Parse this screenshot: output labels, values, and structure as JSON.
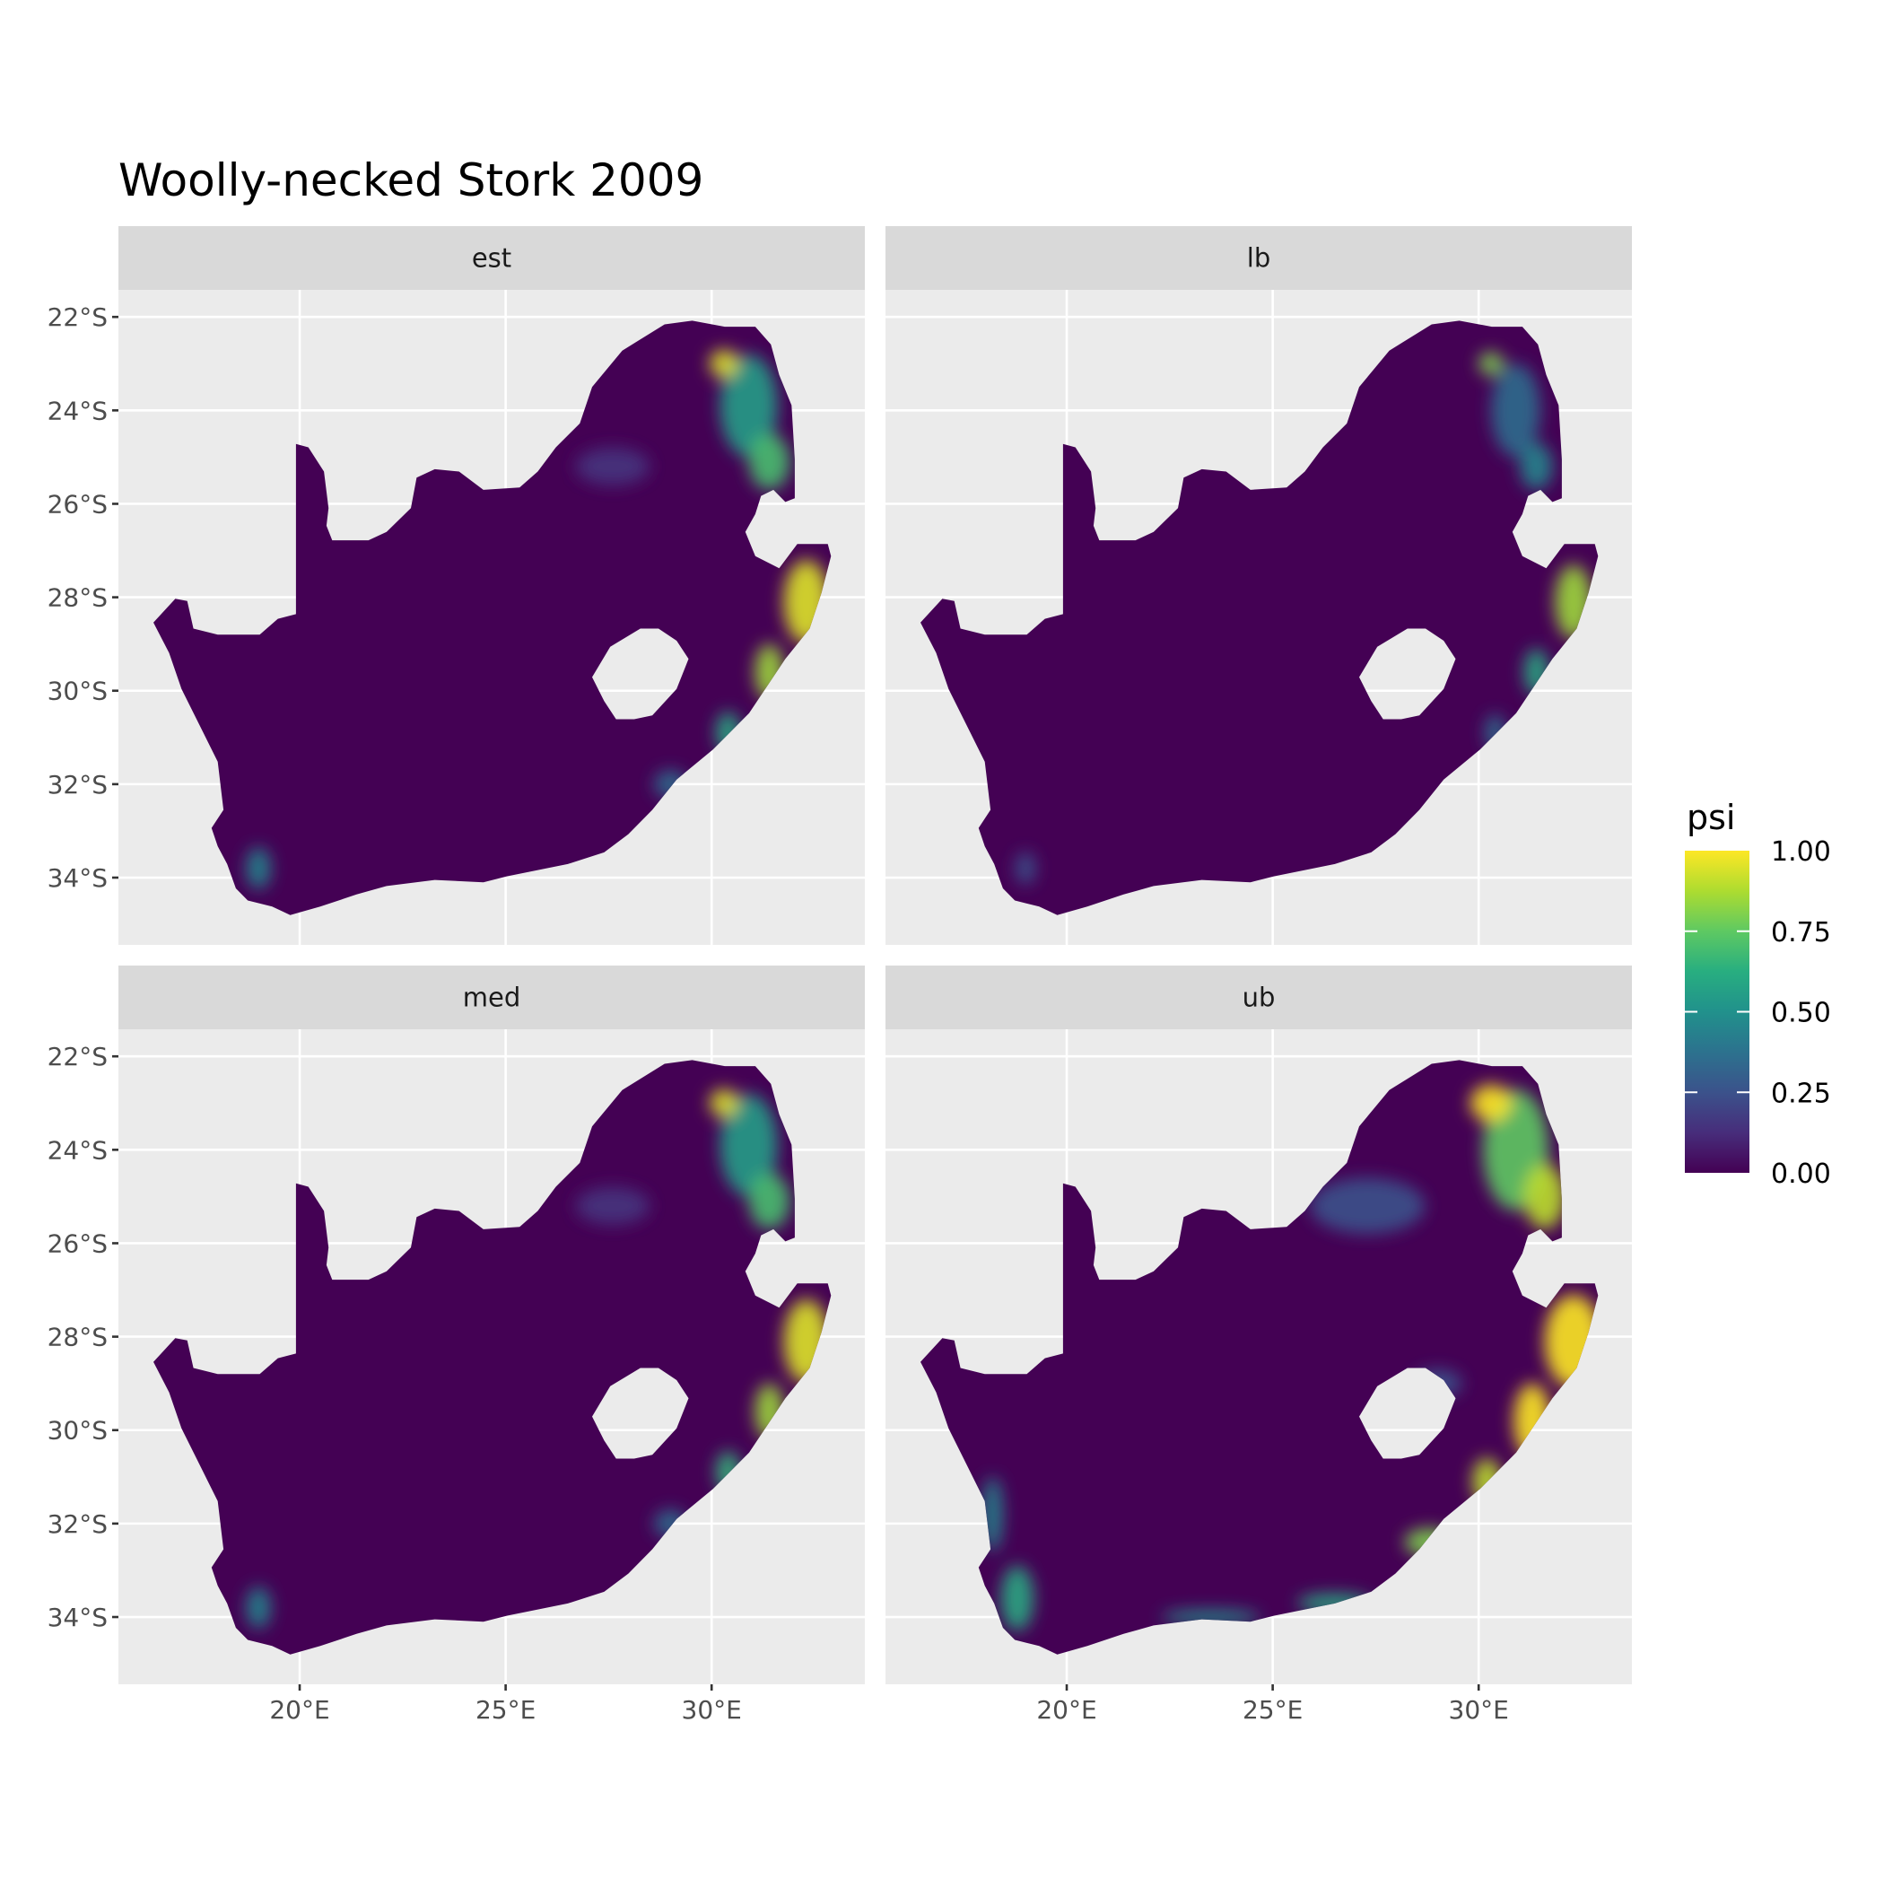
{
  "chart_data": {
    "type": "heatmap",
    "title": "Woolly-necked Stork 2009",
    "xlabel": "",
    "ylabel": "",
    "xlim": [
      15.6,
      33.72
    ],
    "ylim": [
      -35.44,
      -21.42
    ],
    "x_ticks": [
      {
        "value": 20,
        "label": "20°E"
      },
      {
        "value": 25,
        "label": "25°E"
      },
      {
        "value": 30,
        "label": "30°E"
      }
    ],
    "y_ticks": [
      {
        "value": -22,
        "label": "22°S"
      },
      {
        "value": -24,
        "label": "24°S"
      },
      {
        "value": -26,
        "label": "26°S"
      },
      {
        "value": -28,
        "label": "28°S"
      },
      {
        "value": -30,
        "label": "30°S"
      },
      {
        "value": -32,
        "label": "32°S"
      },
      {
        "value": -34,
        "label": "34°S"
      }
    ],
    "grid": true,
    "legend": {
      "title": "psi",
      "position": "right",
      "palette": "viridis",
      "range": [
        0,
        1
      ],
      "ticks": [
        {
          "value": 1.0,
          "label": "1.00"
        },
        {
          "value": 0.75,
          "label": "0.75"
        },
        {
          "value": 0.5,
          "label": "0.50"
        },
        {
          "value": 0.25,
          "label": "0.25"
        },
        {
          "value": 0.0,
          "label": "0.00"
        }
      ]
    },
    "background_psi": 0.0,
    "region_outline": [
      [
        16.45,
        -28.54
      ],
      [
        16.98,
        -28.03
      ],
      [
        17.27,
        -28.08
      ],
      [
        17.42,
        -28.67
      ],
      [
        18.01,
        -28.8
      ],
      [
        19.03,
        -28.8
      ],
      [
        19.47,
        -28.46
      ],
      [
        19.91,
        -28.36
      ],
      [
        19.91,
        -24.72
      ],
      [
        20.21,
        -24.79
      ],
      [
        20.59,
        -25.31
      ],
      [
        20.7,
        -26.09
      ],
      [
        20.65,
        -26.47
      ],
      [
        20.79,
        -26.78
      ],
      [
        21.67,
        -26.78
      ],
      [
        22.11,
        -26.6
      ],
      [
        22.7,
        -26.09
      ],
      [
        22.84,
        -25.44
      ],
      [
        23.28,
        -25.26
      ],
      [
        23.87,
        -25.31
      ],
      [
        24.46,
        -25.7
      ],
      [
        25.34,
        -25.65
      ],
      [
        25.78,
        -25.31
      ],
      [
        26.22,
        -24.79
      ],
      [
        26.8,
        -24.28
      ],
      [
        27.1,
        -23.5
      ],
      [
        27.83,
        -22.72
      ],
      [
        28.86,
        -22.16
      ],
      [
        29.53,
        -22.08
      ],
      [
        30.32,
        -22.21
      ],
      [
        31.06,
        -22.21
      ],
      [
        31.44,
        -22.59
      ],
      [
        31.64,
        -23.24
      ],
      [
        31.94,
        -23.89
      ],
      [
        32.02,
        -25.05
      ],
      [
        32.02,
        -25.88
      ],
      [
        31.79,
        -25.96
      ],
      [
        31.5,
        -25.7
      ],
      [
        31.2,
        -25.83
      ],
      [
        31.06,
        -26.22
      ],
      [
        30.82,
        -26.6
      ],
      [
        31.06,
        -27.12
      ],
      [
        31.64,
        -27.38
      ],
      [
        32.08,
        -26.86
      ],
      [
        32.82,
        -26.86
      ],
      [
        32.9,
        -27.12
      ],
      [
        32.67,
        -27.9
      ],
      [
        32.38,
        -28.67
      ],
      [
        31.79,
        -29.32
      ],
      [
        30.91,
        -30.48
      ],
      [
        30.03,
        -31.26
      ],
      [
        29.15,
        -31.9
      ],
      [
        28.56,
        -32.55
      ],
      [
        27.98,
        -33.07
      ],
      [
        27.39,
        -33.46
      ],
      [
        26.51,
        -33.71
      ],
      [
        25.04,
        -33.97
      ],
      [
        24.46,
        -34.1
      ],
      [
        23.28,
        -34.05
      ],
      [
        22.11,
        -34.18
      ],
      [
        21.38,
        -34.36
      ],
      [
        20.5,
        -34.62
      ],
      [
        19.77,
        -34.8
      ],
      [
        19.33,
        -34.62
      ],
      [
        18.74,
        -34.49
      ],
      [
        18.45,
        -34.23
      ],
      [
        18.24,
        -33.71
      ],
      [
        18.01,
        -33.33
      ],
      [
        17.86,
        -32.94
      ],
      [
        18.15,
        -32.55
      ],
      [
        18.01,
        -31.52
      ],
      [
        17.57,
        -30.74
      ],
      [
        17.13,
        -29.96
      ],
      [
        16.83,
        -29.19
      ]
    ],
    "excluded_outline": [
      [
        27.1,
        -29.71
      ],
      [
        27.54,
        -29.06
      ],
      [
        28.27,
        -28.67
      ],
      [
        28.71,
        -28.67
      ],
      [
        29.15,
        -28.93
      ],
      [
        29.44,
        -29.32
      ],
      [
        29.15,
        -29.96
      ],
      [
        28.56,
        -30.53
      ],
      [
        28.12,
        -30.61
      ],
      [
        27.68,
        -30.61
      ],
      [
        27.39,
        -30.22
      ]
    ],
    "panels": [
      {
        "label": "est",
        "hotspots": [
          {
            "lon": 27.6,
            "lat": -25.2,
            "rlon": 0.9,
            "rlat": 0.4,
            "psi": 0.15
          },
          {
            "lon": 30.9,
            "lat": -23.9,
            "rlon": 0.7,
            "rlat": 1.1,
            "psi": 0.55
          },
          {
            "lon": 31.4,
            "lat": -25.1,
            "rlon": 0.5,
            "rlat": 0.6,
            "psi": 0.7
          },
          {
            "lon": 30.3,
            "lat": -23.0,
            "rlon": 0.35,
            "rlat": 0.3,
            "psi": 0.95
          },
          {
            "lon": 32.3,
            "lat": -28.1,
            "rlon": 0.55,
            "rlat": 0.9,
            "psi": 0.95
          },
          {
            "lon": 31.4,
            "lat": -29.6,
            "rlon": 0.35,
            "rlat": 0.6,
            "psi": 0.85
          },
          {
            "lon": 30.4,
            "lat": -30.9,
            "rlon": 0.3,
            "rlat": 0.45,
            "psi": 0.6
          },
          {
            "lon": 29.0,
            "lat": -32.0,
            "rlon": 0.4,
            "rlat": 0.3,
            "psi": 0.35
          },
          {
            "lon": 19.0,
            "lat": -33.8,
            "rlon": 0.3,
            "rlat": 0.45,
            "psi": 0.45
          }
        ]
      },
      {
        "label": "lb",
        "hotspots": [
          {
            "lon": 30.9,
            "lat": -24.0,
            "rlon": 0.6,
            "rlat": 1.0,
            "psi": 0.35
          },
          {
            "lon": 31.4,
            "lat": -25.2,
            "rlon": 0.4,
            "rlat": 0.5,
            "psi": 0.45
          },
          {
            "lon": 30.3,
            "lat": -23.0,
            "rlon": 0.3,
            "rlat": 0.25,
            "psi": 0.8
          },
          {
            "lon": 32.3,
            "lat": -28.1,
            "rlon": 0.45,
            "rlat": 0.8,
            "psi": 0.85
          },
          {
            "lon": 31.4,
            "lat": -29.6,
            "rlon": 0.3,
            "rlat": 0.5,
            "psi": 0.6
          },
          {
            "lon": 30.4,
            "lat": -30.9,
            "rlon": 0.25,
            "rlat": 0.4,
            "psi": 0.35
          },
          {
            "lon": 19.0,
            "lat": -33.8,
            "rlon": 0.25,
            "rlat": 0.35,
            "psi": 0.25
          }
        ]
      },
      {
        "label": "med",
        "hotspots": [
          {
            "lon": 27.6,
            "lat": -25.2,
            "rlon": 0.9,
            "rlat": 0.4,
            "psi": 0.15
          },
          {
            "lon": 30.9,
            "lat": -23.9,
            "rlon": 0.7,
            "rlat": 1.1,
            "psi": 0.55
          },
          {
            "lon": 31.4,
            "lat": -25.1,
            "rlon": 0.5,
            "rlat": 0.6,
            "psi": 0.7
          },
          {
            "lon": 30.3,
            "lat": -23.0,
            "rlon": 0.35,
            "rlat": 0.3,
            "psi": 0.95
          },
          {
            "lon": 32.3,
            "lat": -28.1,
            "rlon": 0.55,
            "rlat": 0.9,
            "psi": 0.95
          },
          {
            "lon": 31.4,
            "lat": -29.6,
            "rlon": 0.35,
            "rlat": 0.6,
            "psi": 0.85
          },
          {
            "lon": 30.4,
            "lat": -30.9,
            "rlon": 0.3,
            "rlat": 0.45,
            "psi": 0.65
          },
          {
            "lon": 29.0,
            "lat": -32.0,
            "rlon": 0.4,
            "rlat": 0.3,
            "psi": 0.35
          },
          {
            "lon": 19.0,
            "lat": -33.8,
            "rlon": 0.3,
            "rlat": 0.45,
            "psi": 0.45
          }
        ]
      },
      {
        "label": "ub",
        "hotspots": [
          {
            "lon": 27.3,
            "lat": -25.2,
            "rlon": 1.4,
            "rlat": 0.6,
            "psi": 0.25
          },
          {
            "lon": 29.0,
            "lat": -29.0,
            "rlon": 0.6,
            "rlat": 0.3,
            "psi": 0.25
          },
          {
            "lon": 30.9,
            "lat": -24.0,
            "rlon": 0.8,
            "rlat": 1.3,
            "psi": 0.75
          },
          {
            "lon": 31.6,
            "lat": -25.0,
            "rlon": 0.5,
            "rlat": 0.7,
            "psi": 0.9
          },
          {
            "lon": 30.3,
            "lat": -23.0,
            "rlon": 0.5,
            "rlat": 0.4,
            "psi": 1.0
          },
          {
            "lon": 32.3,
            "lat": -28.1,
            "rlon": 0.7,
            "rlat": 1.0,
            "psi": 1.0
          },
          {
            "lon": 31.3,
            "lat": -29.8,
            "rlon": 0.45,
            "rlat": 0.8,
            "psi": 1.0
          },
          {
            "lon": 30.2,
            "lat": -31.1,
            "rlon": 0.35,
            "rlat": 0.5,
            "psi": 0.9
          },
          {
            "lon": 28.8,
            "lat": -32.4,
            "rlon": 0.6,
            "rlat": 0.3,
            "psi": 0.8
          },
          {
            "lon": 26.5,
            "lat": -33.7,
            "rlon": 0.9,
            "rlat": 0.2,
            "psi": 0.6
          },
          {
            "lon": 23.5,
            "lat": -34.0,
            "rlon": 1.2,
            "rlat": 0.15,
            "psi": 0.5
          },
          {
            "lon": 18.8,
            "lat": -33.6,
            "rlon": 0.4,
            "rlat": 0.7,
            "psi": 0.6
          },
          {
            "lon": 18.2,
            "lat": -31.8,
            "rlon": 0.25,
            "rlat": 0.8,
            "psi": 0.45
          }
        ]
      }
    ]
  }
}
